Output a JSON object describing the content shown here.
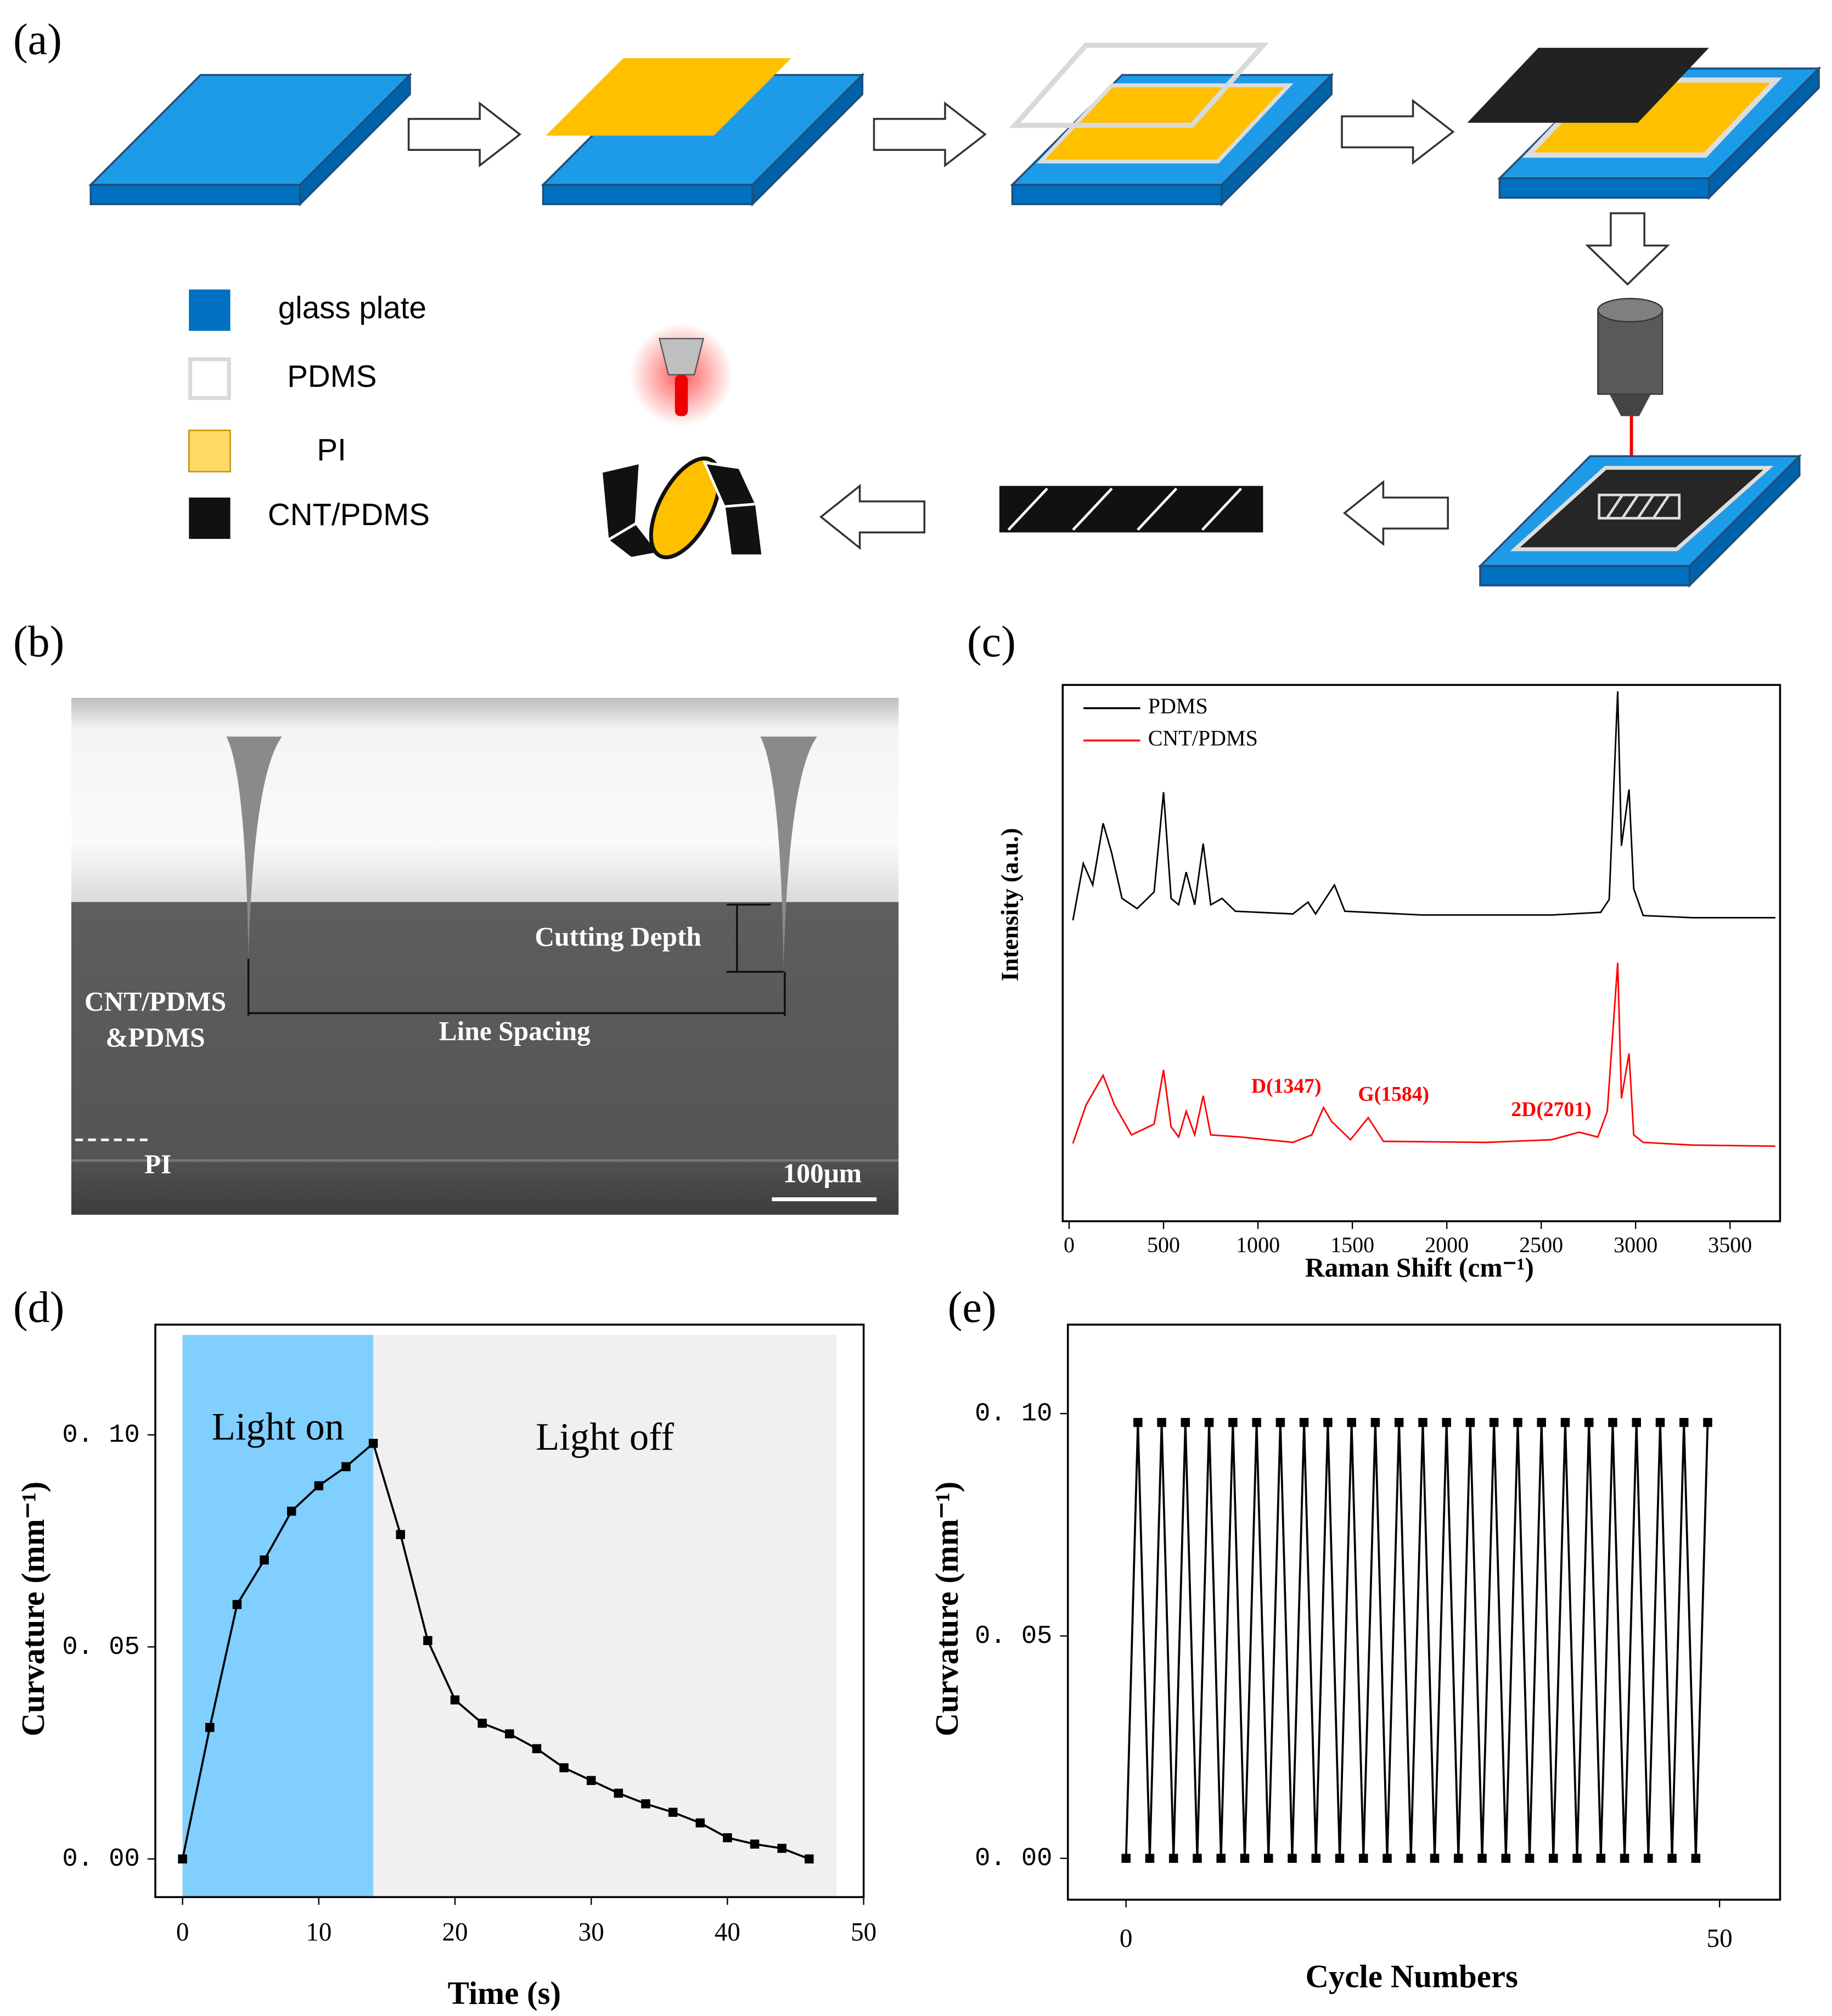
{
  "panel_labels": [
    "(a)",
    "(b)",
    "(c)",
    "(d)",
    "(e)"
  ],
  "legend": [
    "glass plate",
    "PDMS",
    "PI",
    "CNT/PDMS"
  ],
  "sem": {
    "labels": [
      "Cutting Depth",
      "CNT/PDMS",
      "&PDMS",
      "Line Spacing",
      "PI",
      "100μm"
    ]
  },
  "chart_data": [
    {
      "type": "line",
      "x_label": "Raman Shift (cm⁻¹)",
      "y_label": "Intensity (a.u.)",
      "xlim": [
        -34,
        3765
      ],
      "ylim": [
        0,
        100
      ],
      "xticks": [
        0,
        500,
        1000,
        1500,
        2000,
        2500,
        3000,
        3500
      ],
      "legend": "top-left",
      "annotations": [
        "D(1347)",
        "G(1584)",
        "2D(2701)"
      ],
      "series": [
        {
          "name": "PDMS",
          "color": "#000000",
          "x": [
            20,
            75,
            125,
            180,
            225,
            280,
            360,
            450,
            500,
            540,
            580,
            620,
            665,
            710,
            750,
            810,
            880,
            1185,
            1265,
            1305,
            1405,
            1460,
            1870,
            2555,
            2815,
            2860,
            2905,
            2925,
            2965,
            2990,
            3040,
            3300,
            3740
          ],
          "values": [
            56.1,
            66.7,
            62.7,
            74.2,
            68.7,
            60.2,
            58.3,
            61.4,
            80.0,
            60.2,
            59.0,
            65.1,
            59.0,
            70.4,
            59.0,
            60.2,
            57.8,
            57.3,
            59.5,
            57.3,
            62.7,
            57.8,
            57.1,
            57.1,
            57.6,
            60,
            98.8,
            70,
            80.5,
            62,
            57,
            56.6,
            56.6
          ]
        },
        {
          "name": "CNT/PDMS",
          "color": "#ff0000",
          "x": [
            20,
            90,
            180,
            240,
            330,
            450,
            500,
            540,
            580,
            620,
            665,
            710,
            750,
            910,
            1185,
            1285,
            1347,
            1390,
            1490,
            1584,
            1665,
            2210,
            2555,
            2701,
            2800,
            2850,
            2905,
            2925,
            2965,
            2990,
            3040,
            3300,
            3740
          ],
          "values": [
            14.5,
            21.7,
            27.2,
            21.7,
            16.1,
            18.1,
            28.2,
            17.6,
            15.7,
            20.5,
            16.1,
            23.4,
            16.1,
            15.7,
            14.7,
            16.1,
            21.2,
            18.6,
            15.2,
            19.3,
            14.9,
            14.7,
            15.2,
            16.6,
            15.7,
            20.5,
            48.2,
            22.9,
            31.3,
            16.1,
            14.7,
            14.2,
            14.0
          ]
        }
      ]
    },
    {
      "type": "line",
      "x_label": "Time (s)",
      "y_label": "Curvature (mm⁻¹)",
      "xlim": [
        -2,
        50
      ],
      "ylim": [
        -0.009,
        0.126
      ],
      "xticks": [
        0,
        10,
        20,
        30,
        40,
        50
      ],
      "yticks": [
        {
          "value": 0,
          "label": "0. 00"
        },
        {
          "value": 0.05,
          "label": "0. 05"
        },
        {
          "value": 0.1,
          "label": "0. 10"
        }
      ],
      "markers": true,
      "shaded_regions": [
        {
          "label": "Light on",
          "xlim": [
            0,
            14
          ],
          "color": "#80cfff"
        },
        {
          "label": "Light off",
          "xlim": [
            14,
            48
          ],
          "color": "#f0f0f0"
        }
      ],
      "series": [
        {
          "color": "#000000",
          "x": [
            0,
            2,
            4,
            6,
            8,
            10,
            12,
            14,
            16,
            18,
            20,
            22,
            24,
            26,
            28,
            30,
            32,
            34,
            36,
            38,
            40,
            42,
            44,
            46
          ],
          "values": [
            0,
            0.031,
            0.06,
            0.0705,
            0.082,
            0.088,
            0.0925,
            0.098,
            0.0765,
            0.0515,
            0.0375,
            0.032,
            0.0295,
            0.026,
            0.0215,
            0.0185,
            0.0155,
            0.013,
            0.011,
            0.0085,
            0.005,
            0.0035,
            0.0025,
            0
          ]
        }
      ]
    },
    {
      "type": "line",
      "x_label": "Cycle Numbers",
      "y_label": "Curvature (mm⁻¹)",
      "xlim": [
        -4.9,
        55.1
      ],
      "ylim": [
        -0.0093,
        0.12
      ],
      "xticks": [
        0,
        50
      ],
      "yticks": [
        {
          "value": 0,
          "label": "0. 00"
        },
        {
          "value": 0.05,
          "label": "0. 05"
        },
        {
          "value": 0.1,
          "label": "0. 10"
        }
      ],
      "markers": true,
      "series": [
        {
          "color": "#000000",
          "x": [
            0,
            1,
            2,
            3,
            4,
            5,
            6,
            7,
            8,
            9,
            10,
            11,
            12,
            13,
            14,
            15,
            16,
            17,
            18,
            19,
            20,
            21,
            22,
            23,
            24,
            25,
            26,
            27,
            28,
            29,
            30,
            31,
            32,
            33,
            34,
            35,
            36,
            37,
            38,
            39,
            40,
            41,
            42,
            43,
            44,
            45,
            46,
            47,
            48,
            49
          ],
          "values": [
            0,
            0.098,
            0,
            0.098,
            0,
            0.098,
            0,
            0.098,
            0,
            0.098,
            0,
            0.098,
            0,
            0.098,
            0,
            0.098,
            0,
            0.098,
            0,
            0.098,
            0,
            0.098,
            0,
            0.098,
            0,
            0.098,
            0,
            0.098,
            0,
            0.098,
            0,
            0.098,
            0,
            0.098,
            0,
            0.098,
            0,
            0.098,
            0,
            0.098,
            0,
            0.098,
            0,
            0.098,
            0,
            0.098,
            0,
            0.098,
            0,
            0.098
          ]
        }
      ]
    }
  ]
}
